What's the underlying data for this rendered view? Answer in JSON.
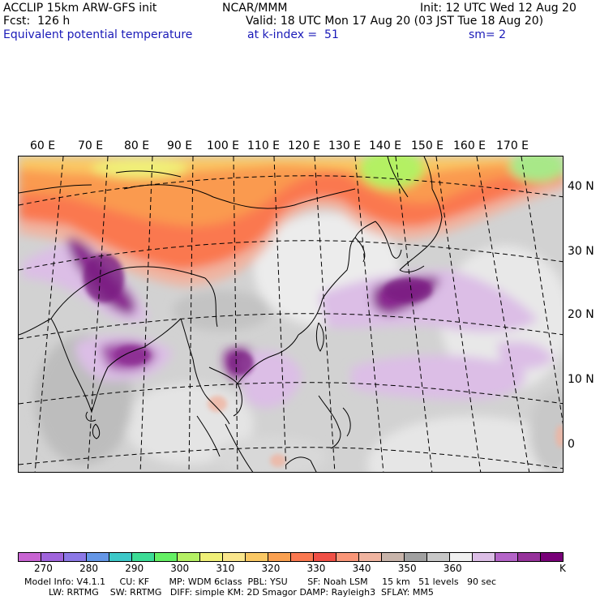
{
  "header": {
    "model": "ACCLIP 15km ARW-GFS init",
    "org": "NCAR/MMM",
    "init": "Init: 12 UTC Wed 12 Aug 20",
    "fcst": "Fcst:  126 h",
    "valid": "Valid: 18 UTC Mon 17 Aug 20 (03 JST Tue 18 Aug 20)",
    "field": "Equivalent potential temperature",
    "level": "at k-index =  51",
    "smooth": "sm= 2"
  },
  "map": {
    "lon_labels": [
      "60 E",
      "70 E",
      "80 E",
      "90 E",
      "100 E",
      "110 E",
      "120 E",
      "130 E",
      "140 E",
      "150 E",
      "160 E",
      "170 E"
    ],
    "lat_labels": [
      "40 N",
      "30 N",
      "20 N",
      "10 N",
      "0"
    ]
  },
  "colorbar": {
    "colors": [
      "#c864d2",
      "#a064dc",
      "#8c78e6",
      "#6496e6",
      "#3cc8c8",
      "#3cdc96",
      "#64f064",
      "#b4f064",
      "#f0f078",
      "#fae68c",
      "#fac864",
      "#faa050",
      "#fa7850",
      "#f05046",
      "#fa9678",
      "#f0b4a0",
      "#c8b4aa",
      "#a0a0a0",
      "#c8c8c8",
      "#f0f0f0",
      "#dcbee6",
      "#b464c8",
      "#96329b",
      "#780078"
    ],
    "labels": [
      "270",
      "280",
      "290",
      "300",
      "310",
      "320",
      "330",
      "340",
      "350",
      "360"
    ],
    "unit": "K"
  },
  "footer": {
    "line1": "Model Info: V4.1.1     CU: KF       MP: WDM 6class  PBL: YSU       SF: Noah LSM     15 km   51 levels   90 sec",
    "line2": "LW: RRTMG    SW: RRTMG   DIFF: simple KM: 2D Smagor DAMP: Rayleigh3  SFLAY: MM5"
  }
}
